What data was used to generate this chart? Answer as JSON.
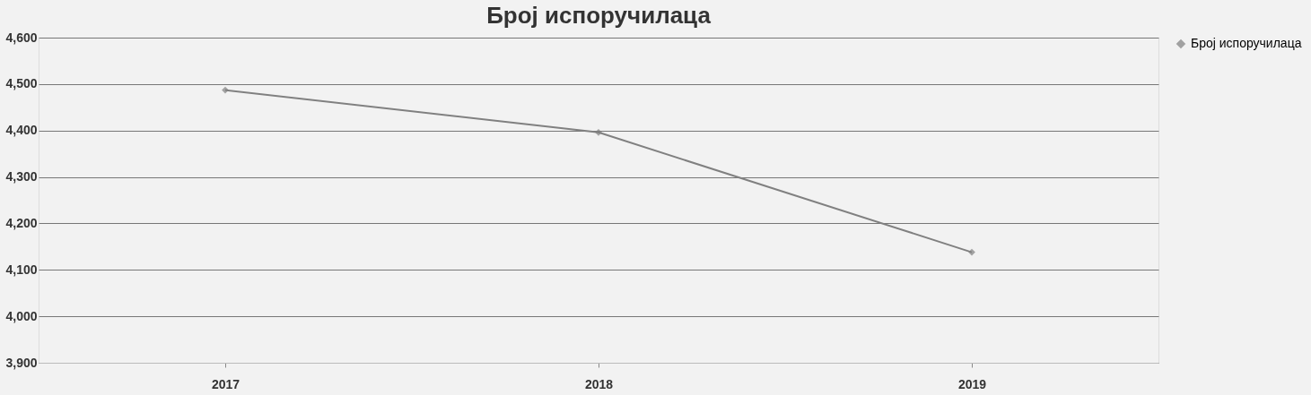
{
  "chart_data": {
    "type": "line",
    "title": "Број испоручилаца",
    "categories": [
      "2017",
      "2018",
      "2019"
    ],
    "series": [
      {
        "name": "Број испоручилаца",
        "color": "#808080",
        "values": [
          4487,
          4396,
          4138
        ]
      }
    ],
    "ylim": [
      3900,
      4600
    ],
    "yticks": [
      {
        "value": 3900,
        "label": "3,900"
      },
      {
        "value": 4000,
        "label": "4,000"
      },
      {
        "value": 4100,
        "label": "4,100"
      },
      {
        "value": 4200,
        "label": "4,200"
      },
      {
        "value": 4300,
        "label": "4,300"
      },
      {
        "value": 4400,
        "label": "4,400"
      },
      {
        "value": 4500,
        "label": "4,500"
      },
      {
        "value": 4600,
        "label": "4,600"
      }
    ],
    "grid": "y",
    "legend": "right",
    "marker": "diamond",
    "line_style": "solid"
  }
}
